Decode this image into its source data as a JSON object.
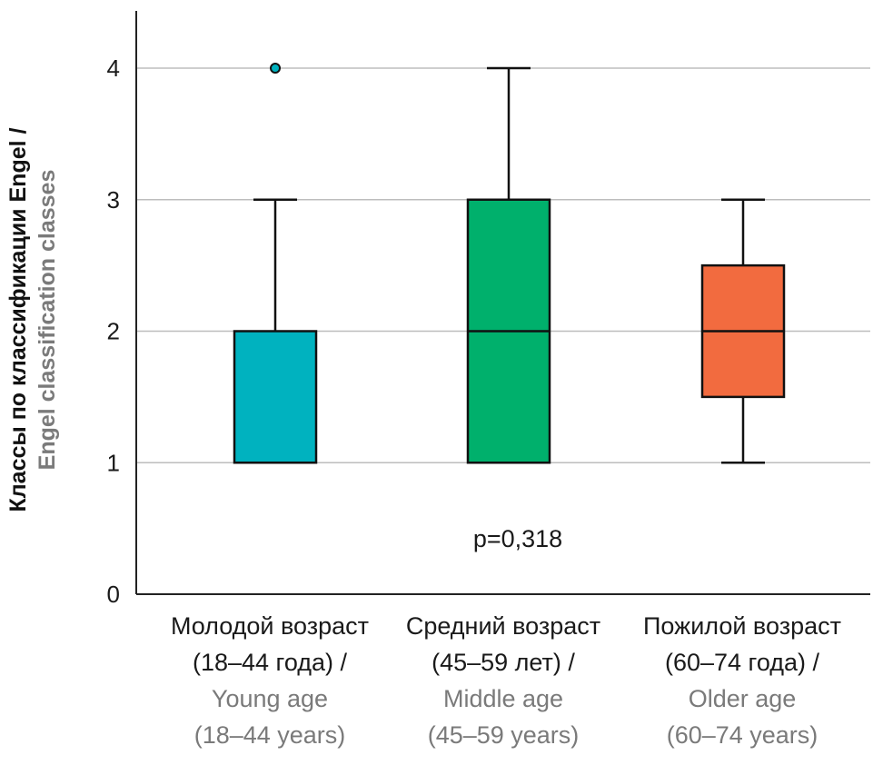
{
  "chart_data": {
    "type": "box",
    "ylabel_ru": "Классы по классификации Engel /",
    "ylabel_en": "Engel classification classes",
    "ylim": [
      0,
      4.4
    ],
    "yticks": [
      "0",
      "1",
      "2",
      "3",
      "4"
    ],
    "grid": true,
    "annotation": "p=0,318",
    "categories": [
      {
        "label_ru_1": "Молодой возраст",
        "label_ru_2": "(18–44 года) /",
        "label_en_1": "Young age",
        "label_en_2": "(18–44 years)",
        "color": "#00b2bf",
        "whisker_low": 1,
        "q1": 1,
        "median": 1,
        "q3": 2,
        "whisker_high": 3,
        "outliers": [
          4
        ]
      },
      {
        "label_ru_1": "Средний возраст",
        "label_ru_2": "(45–59 лет) /",
        "label_en_1": "Middle age",
        "label_en_2": "(45–59 years)",
        "color": "#00b06c",
        "whisker_low": 1,
        "q1": 1,
        "median": 2,
        "q3": 3,
        "whisker_high": 4,
        "outliers": []
      },
      {
        "label_ru_1": "Пожилой возраст",
        "label_ru_2": "(60–74 года) /",
        "label_en_1": "Older age",
        "label_en_2": "(60–74 years)",
        "color": "#f26b3f",
        "whisker_low": 1,
        "q1": 1.5,
        "median": 2,
        "q3": 2.5,
        "whisker_high": 3,
        "outliers": []
      }
    ]
  }
}
